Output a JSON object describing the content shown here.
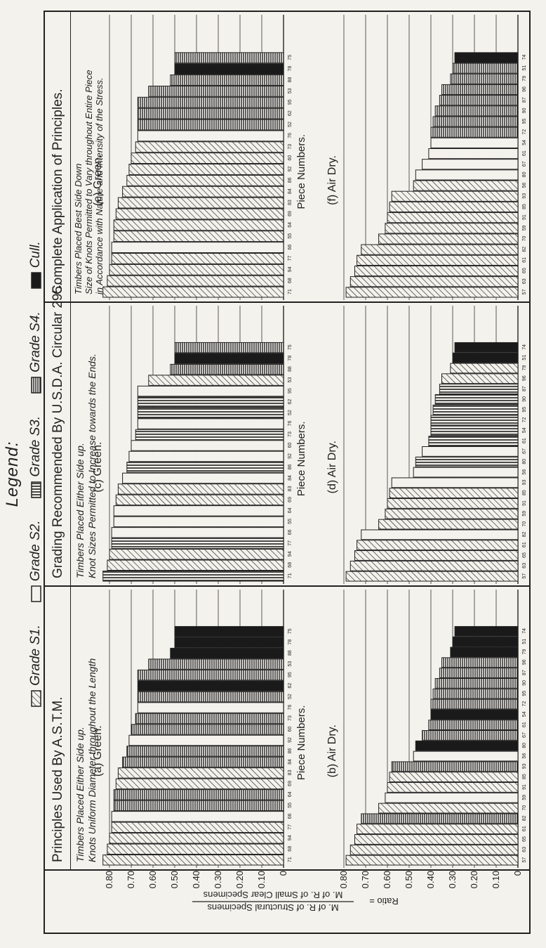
{
  "legend": {
    "title": "Legend:",
    "items": [
      {
        "label": "Grade S1.",
        "pattern": "hatch"
      },
      {
        "label": "Grade S2.",
        "pattern": "white"
      },
      {
        "label": "Grade S3.",
        "pattern": "vertical"
      },
      {
        "label": "Grade S4.",
        "pattern": "horizontal"
      },
      {
        "label": "Cull.",
        "pattern": "black"
      }
    ]
  },
  "sections": [
    {
      "title": "Principles Used By A.S.T.M.",
      "sub1": "Timbers Placed Either Side up.",
      "sub2": "Knots Uniform Diameter throughout the Length"
    },
    {
      "title": "Grading Recommended By U.S.D.A. Circular 295.",
      "sub1": "Timbers Placed Either Side up.",
      "sub2": "Knot Sizes Permitted to Increase towards the Ends."
    },
    {
      "title": "Complete Application of Principles.",
      "sub1": "Timbers Placed Best Side Down",
      "sub2": "Size of Knots Permitted to Vary throughout Entire Piece",
      "sub3": "in Accordance with Nature and Intensity of the Stress."
    }
  ],
  "ylabel": {
    "prefix": "Ratio =",
    "numerator": "M. of R. of Structural Specimens",
    "denominator": "M. of R. of Small Clear Specimens"
  },
  "colors": {
    "ink": "#222222",
    "paper": "#f4f2ec"
  },
  "chart_data": [
    {
      "type": "bar",
      "panel": "(a)",
      "title": "(a) Green.",
      "xlabel": "Piece Numbers.",
      "ylim": [
        0,
        0.8
      ],
      "yticks": [
        "0.80",
        "0.70",
        "0.60",
        "0.50",
        "0.40",
        "0.30",
        "0.20",
        "0.10",
        "0"
      ],
      "categories": [
        "71",
        "68",
        "94",
        "77",
        "66",
        "55",
        "64",
        "69",
        "83",
        "84",
        "86",
        "92",
        "60",
        "73",
        "76",
        "52",
        "62",
        "95",
        "53",
        "88",
        "78",
        "75"
      ],
      "values": [
        0.83,
        0.81,
        0.8,
        0.79,
        0.79,
        0.78,
        0.78,
        0.77,
        0.76,
        0.74,
        0.72,
        0.71,
        0.7,
        0.68,
        0.67,
        0.67,
        0.67,
        0.67,
        0.62,
        0.52,
        0.5,
        0.5
      ],
      "grades": [
        "S1",
        "S1",
        "S1",
        "S1",
        "S2",
        "S4",
        "S4",
        "S1",
        "S1",
        "S4",
        "S4",
        "S2",
        "S4",
        "S4",
        "S2",
        "S4",
        "Cull",
        "S4",
        "S4",
        "Cull",
        "Cull",
        "Cull"
      ]
    },
    {
      "type": "bar",
      "panel": "(b)",
      "title": "(b) Air Dry.",
      "xlabel": "Piece Numbers.",
      "ylim": [
        0,
        0.8
      ],
      "yticks": [
        "0.80",
        "0.70",
        "0.60",
        "0.50",
        "0.40",
        "0.30",
        "0.20",
        "0.10",
        "0"
      ],
      "categories": [
        "57",
        "63",
        "65",
        "61",
        "82",
        "70",
        "59",
        "91",
        "85",
        "93",
        "56",
        "80",
        "67",
        "61",
        "54",
        "72",
        "95",
        "90",
        "87",
        "96",
        "79",
        "51",
        "74"
      ],
      "values": [
        0.79,
        0.77,
        0.75,
        0.74,
        0.72,
        0.64,
        0.61,
        0.6,
        0.59,
        0.58,
        0.48,
        0.47,
        0.44,
        0.41,
        0.4,
        0.4,
        0.39,
        0.38,
        0.36,
        0.35,
        0.31,
        0.3,
        0.29
      ],
      "grades": [
        "S1",
        "S1",
        "S1",
        "S1",
        "S4",
        "S1",
        "S2",
        "S1",
        "S1",
        "S4",
        "S2",
        "Cull",
        "S4",
        "S4",
        "Cull",
        "S4",
        "S4",
        "S4",
        "S4",
        "S4",
        "Cull",
        "Cull",
        "Cull"
      ]
    },
    {
      "type": "bar",
      "panel": "(c)",
      "title": "(c) Green.",
      "xlabel": "Piece Numbers.",
      "ylim": [
        0,
        0.8
      ],
      "categories": [
        "71",
        "68",
        "94",
        "77",
        "66",
        "55",
        "64",
        "69",
        "83",
        "84",
        "86",
        "92",
        "60",
        "73",
        "76",
        "52",
        "62",
        "95",
        "53",
        "88",
        "78",
        "75"
      ],
      "values": [
        0.83,
        0.81,
        0.8,
        0.79,
        0.79,
        0.78,
        0.78,
        0.77,
        0.76,
        0.74,
        0.72,
        0.71,
        0.7,
        0.68,
        0.67,
        0.67,
        0.67,
        0.67,
        0.62,
        0.52,
        0.5,
        0.5
      ],
      "grades": [
        "S3",
        "S1",
        "S1",
        "S3",
        "S2",
        "S2",
        "S2",
        "S1",
        "S1",
        "S2",
        "S3",
        "S2",
        "S2",
        "S3",
        "S2",
        "S3",
        "S3",
        "S2",
        "S1",
        "S4",
        "Cull",
        "S4"
      ]
    },
    {
      "type": "bar",
      "panel": "(d)",
      "title": "(d) Air Dry.",
      "xlabel": "Piece Numbers.",
      "ylim": [
        0,
        0.8
      ],
      "categories": [
        "57",
        "63",
        "65",
        "61",
        "82",
        "70",
        "59",
        "91",
        "85",
        "93",
        "56",
        "80",
        "67",
        "61",
        "54",
        "72",
        "95",
        "90",
        "87",
        "96",
        "79",
        "51",
        "74"
      ],
      "values": [
        0.79,
        0.77,
        0.75,
        0.74,
        0.72,
        0.64,
        0.61,
        0.6,
        0.59,
        0.58,
        0.48,
        0.47,
        0.44,
        0.41,
        0.4,
        0.4,
        0.39,
        0.38,
        0.36,
        0.35,
        0.31,
        0.3,
        0.29
      ],
      "grades": [
        "S1",
        "S1",
        "S1",
        "S1",
        "S2",
        "S1",
        "S1",
        "S1",
        "S1",
        "S2",
        "S2",
        "S3",
        "S2",
        "S3",
        "S3",
        "S3",
        "S3",
        "S3",
        "S3",
        "S1",
        "S1",
        "Cull",
        "Cull"
      ]
    },
    {
      "type": "bar",
      "panel": "(e)",
      "title": "(e) Green.",
      "xlabel": "Piece Numbers.",
      "ylim": [
        0,
        0.8
      ],
      "categories": [
        "71",
        "68",
        "94",
        "77",
        "66",
        "55",
        "64",
        "69",
        "83",
        "84",
        "86",
        "92",
        "60",
        "73",
        "76",
        "52",
        "62",
        "95",
        "53",
        "88",
        "78",
        "75"
      ],
      "values": [
        0.83,
        0.81,
        0.8,
        0.79,
        0.79,
        0.78,
        0.78,
        0.77,
        0.76,
        0.74,
        0.72,
        0.71,
        0.7,
        0.68,
        0.67,
        0.67,
        0.67,
        0.67,
        0.62,
        0.52,
        0.5,
        0.5
      ],
      "grades": [
        "S1",
        "S1",
        "S1",
        "S1",
        "S2",
        "S1",
        "S1",
        "S1",
        "S1",
        "S1",
        "S1",
        "S1",
        "S1",
        "S1",
        "S2",
        "S4",
        "S4",
        "S4",
        "S4",
        "S4",
        "Cull",
        "S4"
      ]
    },
    {
      "type": "bar",
      "panel": "(f)",
      "title": "(f) Air Dry.",
      "xlabel": "Piece Numbers.",
      "ylim": [
        0,
        0.8
      ],
      "categories": [
        "57",
        "63",
        "65",
        "61",
        "82",
        "70",
        "59",
        "91",
        "85",
        "93",
        "56",
        "80",
        "67",
        "61",
        "54",
        "72",
        "95",
        "90",
        "87",
        "96",
        "79",
        "51",
        "74"
      ],
      "values": [
        0.79,
        0.77,
        0.75,
        0.74,
        0.72,
        0.64,
        0.61,
        0.6,
        0.59,
        0.58,
        0.48,
        0.47,
        0.44,
        0.41,
        0.4,
        0.4,
        0.39,
        0.38,
        0.36,
        0.35,
        0.31,
        0.3,
        0.29
      ],
      "grades": [
        "S1",
        "S1",
        "S1",
        "S1",
        "S1",
        "S1",
        "S1",
        "S1",
        "S1",
        "S1",
        "S1",
        "S2",
        "S2",
        "S2",
        "S2",
        "S4",
        "S4",
        "S4",
        "S4",
        "S4",
        "S4",
        "S4",
        "Cull"
      ]
    }
  ]
}
